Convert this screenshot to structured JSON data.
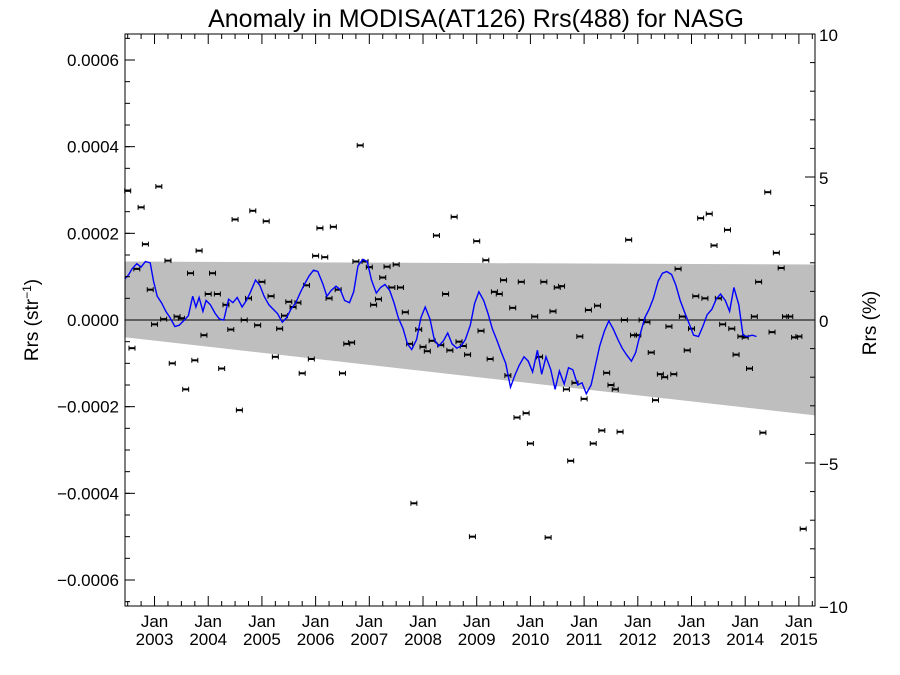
{
  "chart_data": {
    "type": "scatter",
    "title": "Anomaly in MODISA(AT126) Rrs(488) for NASG",
    "ylabel_left_base": "Rrs (str",
    "ylabel_left_sup": "−1",
    "ylabel_left_end": ")",
    "ylabel_right": "Rrs (%)",
    "xlim": [
      2002.45,
      2015.3
    ],
    "ylim": [
      -0.00066,
      0.00066
    ],
    "y2lim": [
      -10,
      10
    ],
    "yticks": [
      -0.0006,
      -0.0004,
      -0.0002,
      0.0,
      0.0002,
      0.0004,
      0.0006
    ],
    "ytick_labels": [
      "−0.0006",
      "−0.0004",
      "−0.0002",
      "0.0000",
      "0.0002",
      "0.0004",
      "0.0006"
    ],
    "y2ticks": [
      -10,
      -5,
      0,
      5,
      10
    ],
    "y2tick_labels": [
      "−10",
      "−5",
      "0",
      "5",
      "10"
    ],
    "xticks": [
      2003,
      2004,
      2005,
      2006,
      2007,
      2008,
      2009,
      2010,
      2011,
      2012,
      2013,
      2014,
      2015
    ],
    "xtick_month": "Jan",
    "xtick_years": [
      "2003",
      "2004",
      "2005",
      "2006",
      "2007",
      "2008",
      "2009",
      "2010",
      "2011",
      "2012",
      "2013",
      "2014",
      "2015"
    ],
    "zero_line": 0,
    "colors": {
      "series": "#0000ff",
      "band": "#bebebe",
      "points": "#000000"
    },
    "band": {
      "x": [
        2002.45,
        2015.3
      ],
      "upper": [
        0.000135,
        0.000128
      ],
      "lower": [
        -4e-05,
        -0.00022
      ]
    },
    "points": [
      [
        2002.5,
        0.000298
      ],
      [
        2002.58,
        -6.5e-05
      ],
      [
        2002.67,
        0.000118
      ],
      [
        2002.75,
        0.00026
      ],
      [
        2002.83,
        0.000175
      ],
      [
        2002.92,
        7e-05
      ],
      [
        2003.0,
        -1e-05
      ],
      [
        2003.08,
        0.000308
      ],
      [
        2003.17,
        2e-06
      ],
      [
        2003.25,
        0.000137
      ],
      [
        2003.33,
        -0.0001
      ],
      [
        2003.42,
        8e-06
      ],
      [
        2003.5,
        4e-06
      ],
      [
        2003.58,
        -0.00016
      ],
      [
        2003.67,
        0.000108
      ],
      [
        2003.75,
        -9.3e-05
      ],
      [
        2003.83,
        0.00016
      ],
      [
        2003.92,
        -3.5e-05
      ],
      [
        2004.0,
        6e-05
      ],
      [
        2004.08,
        0.000108
      ],
      [
        2004.17,
        6e-05
      ],
      [
        2004.25,
        -0.000112
      ],
      [
        2004.33,
        3.5e-05
      ],
      [
        2004.42,
        -2.2e-05
      ],
      [
        2004.5,
        0.000232
      ],
      [
        2004.58,
        -0.000208
      ],
      [
        2004.67,
        0.0
      ],
      [
        2004.75,
        5e-05
      ],
      [
        2004.83,
        0.000252
      ],
      [
        2004.92,
        -1.2e-05
      ],
      [
        2005.0,
        8.8e-05
      ],
      [
        2005.08,
        0.000228
      ],
      [
        2005.17,
        5.5e-05
      ],
      [
        2005.25,
        -8.5e-05
      ],
      [
        2005.33,
        -2e-05
      ],
      [
        2005.42,
        1e-05
      ],
      [
        2005.5,
        4.2e-05
      ],
      [
        2005.58,
        3e-05
      ],
      [
        2005.67,
        4e-05
      ],
      [
        2005.75,
        -0.000123
      ],
      [
        2005.83,
        8e-05
      ],
      [
        2005.92,
        -9e-05
      ],
      [
        2006.0,
        0.000148
      ],
      [
        2006.08,
        0.000212
      ],
      [
        2006.17,
        0.000145
      ],
      [
        2006.25,
        5e-05
      ],
      [
        2006.33,
        0.000215
      ],
      [
        2006.42,
        7e-05
      ],
      [
        2006.5,
        -0.000123
      ],
      [
        2006.58,
        -5.5e-05
      ],
      [
        2006.67,
        -5.2e-05
      ],
      [
        2006.75,
        0.000135
      ],
      [
        2006.83,
        0.000403
      ],
      [
        2006.92,
        0.000135
      ],
      [
        2007.0,
        0.000122
      ],
      [
        2007.08,
        3.5e-05
      ],
      [
        2007.17,
        4.8e-05
      ],
      [
        2007.25,
        9.8e-05
      ],
      [
        2007.33,
        0.000123
      ],
      [
        2007.42,
        7.5e-05
      ],
      [
        2007.5,
        0.000128
      ],
      [
        2007.58,
        7.5e-05
      ],
      [
        2007.67,
        1.8e-05
      ],
      [
        2007.75,
        -5.5e-05
      ],
      [
        2007.83,
        -0.000423
      ],
      [
        2007.92,
        -2.2e-05
      ],
      [
        2008.0,
        -6.2e-05
      ],
      [
        2008.08,
        -7.2e-05
      ],
      [
        2008.17,
        -4.8e-05
      ],
      [
        2008.25,
        0.000195
      ],
      [
        2008.33,
        -5.8e-05
      ],
      [
        2008.42,
        6e-05
      ],
      [
        2008.5,
        -7e-05
      ],
      [
        2008.58,
        0.000238
      ],
      [
        2008.67,
        -5e-05
      ],
      [
        2008.75,
        -6e-05
      ],
      [
        2008.83,
        -8e-05
      ],
      [
        2008.92,
        -0.0005
      ],
      [
        2009.0,
        0.000182
      ],
      [
        2009.08,
        -2.5e-05
      ],
      [
        2009.17,
        0.000138
      ],
      [
        2009.25,
        -9e-05
      ],
      [
        2009.33,
        6.5e-05
      ],
      [
        2009.42,
        6e-05
      ],
      [
        2009.5,
        9.2e-05
      ],
      [
        2009.58,
        -0.000128
      ],
      [
        2009.67,
        2.8e-05
      ],
      [
        2009.75,
        -0.000225
      ],
      [
        2009.83,
        8.8e-05
      ],
      [
        2009.92,
        -0.000215
      ],
      [
        2010.0,
        -0.000285
      ],
      [
        2010.08,
        8e-06
      ],
      [
        2010.17,
        -8.5e-05
      ],
      [
        2010.25,
        8.8e-05
      ],
      [
        2010.33,
        -0.000502
      ],
      [
        2010.42,
        2e-05
      ],
      [
        2010.5,
        7.5e-05
      ],
      [
        2010.58,
        7.8e-05
      ],
      [
        2010.67,
        -0.00016
      ],
      [
        2010.75,
        -0.000325
      ],
      [
        2010.83,
        -0.000145
      ],
      [
        2010.92,
        -3.8e-05
      ],
      [
        2011.0,
        -0.000182
      ],
      [
        2011.08,
        2.3e-05
      ],
      [
        2011.17,
        -0.000285
      ],
      [
        2011.25,
        3.3e-05
      ],
      [
        2011.33,
        -0.000255
      ],
      [
        2011.42,
        -0.000122
      ],
      [
        2011.5,
        -0.00015
      ],
      [
        2011.58,
        -0.00016
      ],
      [
        2011.67,
        -0.000258
      ],
      [
        2011.75,
        0.0
      ],
      [
        2011.83,
        0.000185
      ],
      [
        2011.92,
        -3.5e-05
      ],
      [
        2012.0,
        -3.5e-05
      ],
      [
        2012.08,
        0.0
      ],
      [
        2012.17,
        -5e-06
      ],
      [
        2012.25,
        -7.5e-05
      ],
      [
        2012.33,
        -0.000185
      ],
      [
        2012.42,
        -0.000125
      ],
      [
        2012.5,
        -0.000132
      ],
      [
        2012.58,
        -1.5e-05
      ],
      [
        2012.67,
        -0.000125
      ],
      [
        2012.75,
        0.000118
      ],
      [
        2012.83,
        8e-06
      ],
      [
        2012.92,
        -7e-05
      ],
      [
        2013.0,
        -2e-05
      ],
      [
        2013.08,
        5.5e-05
      ],
      [
        2013.17,
        0.000235
      ],
      [
        2013.25,
        5e-05
      ],
      [
        2013.33,
        0.000245
      ],
      [
        2013.42,
        0.000172
      ],
      [
        2013.5,
        5e-05
      ],
      [
        2013.58,
        -1e-05
      ],
      [
        2013.67,
        0.000208
      ],
      [
        2013.75,
        -2e-05
      ],
      [
        2013.83,
        -8e-05
      ],
      [
        2013.92,
        -3.8e-05
      ],
      [
        2014.0,
        -4e-05
      ],
      [
        2014.08,
        -0.000112
      ],
      [
        2014.17,
        8e-06
      ],
      [
        2014.25,
        8.8e-05
      ],
      [
        2014.33,
        -0.00026
      ],
      [
        2014.42,
        0.000295
      ],
      [
        2014.5,
        -2.8e-05
      ],
      [
        2014.58,
        0.000155
      ],
      [
        2014.67,
        0.00012
      ],
      [
        2014.75,
        8e-06
      ],
      [
        2014.83,
        8e-06
      ],
      [
        2014.92,
        -4e-05
      ],
      [
        2015.0,
        -3.8e-05
      ],
      [
        2015.08,
        -0.000482
      ]
    ],
    "series": [
      {
        "values": [
          [
            2002.45,
            9.5e-05
          ],
          [
            2002.52,
            0.000105
          ],
          [
            2002.58,
            0.000118
          ],
          [
            2002.67,
            0.00013
          ],
          [
            2002.75,
            0.000122
          ],
          [
            2002.83,
            0.000135
          ],
          [
            2002.92,
            0.000132
          ],
          [
            2002.98,
            9e-05
          ],
          [
            2003.05,
            5.5e-05
          ],
          [
            2003.13,
            4e-05
          ],
          [
            2003.21,
            2e-05
          ],
          [
            2003.29,
            5e-06
          ],
          [
            2003.38,
            -1.5e-05
          ],
          [
            2003.46,
            -1.2e-05
          ],
          [
            2003.54,
            -2e-06
          ],
          [
            2003.63,
            1e-05
          ],
          [
            2003.71,
            5.5e-05
          ],
          [
            2003.77,
            3e-05
          ],
          [
            2003.83,
            5.2e-05
          ],
          [
            2003.9,
            2e-05
          ],
          [
            2003.96,
            4.5e-05
          ],
          [
            2004.04,
            3.5e-05
          ],
          [
            2004.13,
            1.5e-05
          ],
          [
            2004.21,
            2e-06
          ],
          [
            2004.29,
            0.0
          ],
          [
            2004.38,
            4.8e-05
          ],
          [
            2004.46,
            4e-05
          ],
          [
            2004.54,
            5.2e-05
          ],
          [
            2004.63,
            3e-05
          ],
          [
            2004.71,
            4.5e-05
          ],
          [
            2004.79,
            6.5e-05
          ],
          [
            2004.88,
            9.2e-05
          ],
          [
            2004.96,
            8e-05
          ],
          [
            2005.04,
            5.5e-05
          ],
          [
            2005.13,
            3.5e-05
          ],
          [
            2005.21,
            2.5e-05
          ],
          [
            2005.29,
            1.5e-05
          ],
          [
            2005.38,
            -5e-06
          ],
          [
            2005.46,
            5e-06
          ],
          [
            2005.54,
            2.5e-05
          ],
          [
            2005.63,
            4e-05
          ],
          [
            2005.71,
            6.2e-05
          ],
          [
            2005.79,
            8.2e-05
          ],
          [
            2005.88,
            0.000102
          ],
          [
            2005.96,
            0.000115
          ],
          [
            2006.04,
            0.000112
          ],
          [
            2006.13,
            8.5e-05
          ],
          [
            2006.21,
            5.5e-05
          ],
          [
            2006.29,
            6.8e-05
          ],
          [
            2006.38,
            7.8e-05
          ],
          [
            2006.46,
            7e-05
          ],
          [
            2006.54,
            4.5e-05
          ],
          [
            2006.63,
            4e-05
          ],
          [
            2006.71,
            6.5e-05
          ],
          [
            2006.79,
            0.000125
          ],
          [
            2006.88,
            0.00014
          ],
          [
            2006.96,
            0.000135
          ],
          [
            2007.04,
            9.2e-05
          ],
          [
            2007.13,
            6.2e-05
          ],
          [
            2007.21,
            7.5e-05
          ],
          [
            2007.29,
            8.2e-05
          ],
          [
            2007.38,
            6.8e-05
          ],
          [
            2007.46,
            4e-05
          ],
          [
            2007.54,
            5e-06
          ],
          [
            2007.63,
            -2e-05
          ],
          [
            2007.71,
            -5.5e-05
          ],
          [
            2007.79,
            -6.8e-05
          ],
          [
            2007.88,
            -4.5e-05
          ],
          [
            2007.96,
            5e-06
          ],
          [
            2008.04,
            3e-05
          ],
          [
            2008.13,
            2e-06
          ],
          [
            2008.21,
            -4.5e-05
          ],
          [
            2008.29,
            -6e-05
          ],
          [
            2008.38,
            -4.8e-05
          ],
          [
            2008.46,
            -3e-05
          ],
          [
            2008.54,
            -5.5e-05
          ],
          [
            2008.63,
            -6.5e-05
          ],
          [
            2008.71,
            -6e-05
          ],
          [
            2008.79,
            -4.5e-05
          ],
          [
            2008.88,
            -1.2e-05
          ],
          [
            2008.96,
            3.8e-05
          ],
          [
            2009.04,
            6.5e-05
          ],
          [
            2009.13,
            4.5e-05
          ],
          [
            2009.21,
            1.5e-05
          ],
          [
            2009.29,
            -2e-05
          ],
          [
            2009.38,
            -4.8e-05
          ],
          [
            2009.46,
            -7.5e-05
          ],
          [
            2009.54,
            -0.0001
          ],
          [
            2009.63,
            -0.000155
          ],
          [
            2009.71,
            -0.000128
          ],
          [
            2009.79,
            -0.000105
          ],
          [
            2009.88,
            -8.5e-05
          ],
          [
            2009.96,
            -9.5e-05
          ],
          [
            2010.04,
            -0.00012
          ],
          [
            2010.13,
            -7e-05
          ],
          [
            2010.21,
            -0.000125
          ],
          [
            2010.29,
            -8.5e-05
          ],
          [
            2010.38,
            -0.000115
          ],
          [
            2010.46,
            -0.00016
          ],
          [
            2010.54,
            -0.000118
          ],
          [
            2010.63,
            -0.000148
          ],
          [
            2010.71,
            -0.00011
          ],
          [
            2010.79,
            -0.000115
          ],
          [
            2010.88,
            -0.00015
          ],
          [
            2010.96,
            -0.000145
          ],
          [
            2011.04,
            -0.00017
          ],
          [
            2011.13,
            -0.00015
          ],
          [
            2011.21,
            -0.000105
          ],
          [
            2011.29,
            -6e-05
          ],
          [
            2011.38,
            -2.5e-05
          ],
          [
            2011.46,
            -2e-06
          ],
          [
            2011.54,
            -2e-05
          ],
          [
            2011.63,
            -4.5e-05
          ],
          [
            2011.71,
            -6.5e-05
          ],
          [
            2011.79,
            -8e-05
          ],
          [
            2011.88,
            -9.5e-05
          ],
          [
            2011.96,
            -7.5e-05
          ],
          [
            2012.04,
            -3.5e-05
          ],
          [
            2012.13,
            5e-06
          ],
          [
            2012.21,
            2.5e-05
          ],
          [
            2012.29,
            5e-05
          ],
          [
            2012.38,
            9e-05
          ],
          [
            2012.46,
            0.000108
          ],
          [
            2012.54,
            0.000112
          ],
          [
            2012.63,
            0.000105
          ],
          [
            2012.71,
            8e-05
          ],
          [
            2012.79,
            4.5e-05
          ],
          [
            2012.88,
            1.5e-05
          ],
          [
            2012.96,
            -1e-05
          ],
          [
            2013.04,
            -3.5e-05
          ],
          [
            2013.13,
            -3.8e-05
          ],
          [
            2013.21,
            -1.5e-05
          ],
          [
            2013.29,
            1.2e-05
          ],
          [
            2013.38,
            2.5e-05
          ],
          [
            2013.46,
            4.8e-05
          ],
          [
            2013.54,
            6e-05
          ],
          [
            2013.63,
            4.5e-05
          ],
          [
            2013.71,
            2e-05
          ],
          [
            2013.79,
            7.5e-05
          ],
          [
            2013.88,
            3.5e-05
          ],
          [
            2013.96,
            -3.5e-05
          ],
          [
            2014.04,
            -3.8e-05
          ],
          [
            2014.13,
            -3.5e-05
          ],
          [
            2014.21,
            -3.8e-05
          ]
        ]
      }
    ]
  }
}
